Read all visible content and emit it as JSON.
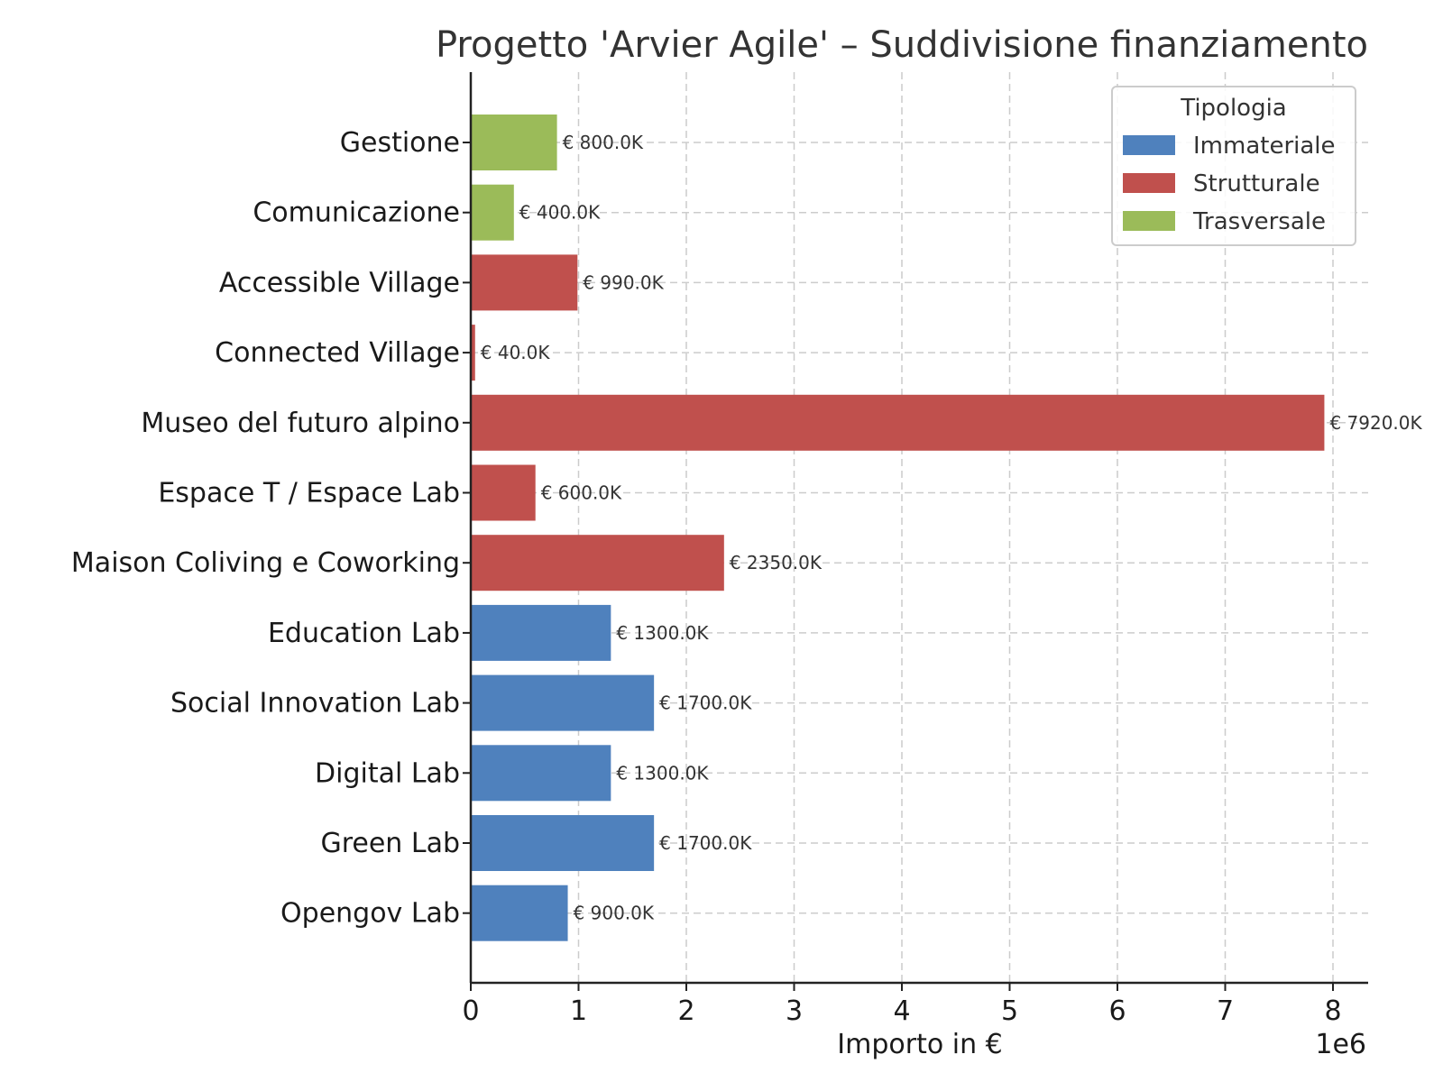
{
  "chart_data": {
    "type": "bar",
    "orientation": "horizontal",
    "title": "Progetto 'Arvier Agile' – Suddivisione finanziamento",
    "xlabel": "Importo in €",
    "xaxis_offset_label": "1e6",
    "ylabel": "",
    "xlim": [
      0,
      8300000
    ],
    "xticks": [
      0,
      1000000,
      2000000,
      3000000,
      4000000,
      5000000,
      6000000,
      7000000,
      8000000
    ],
    "xtick_labels": [
      "0",
      "1",
      "2",
      "3",
      "4",
      "5",
      "6",
      "7",
      "8"
    ],
    "grid": true,
    "legend": {
      "title": "Tipologia",
      "placement": "top-right",
      "entries": [
        {
          "name": "Immateriale",
          "color": "#4f81bd"
        },
        {
          "name": "Strutturale",
          "color": "#c0504d"
        },
        {
          "name": "Trasversale",
          "color": "#9bbb59"
        }
      ]
    },
    "bars": [
      {
        "category": "Gestione",
        "value": 800000,
        "type": "Trasversale",
        "label": "€ 800.0K"
      },
      {
        "category": "Comunicazione",
        "value": 400000,
        "type": "Trasversale",
        "label": "€ 400.0K"
      },
      {
        "category": "Accessible Village",
        "value": 990000,
        "type": "Strutturale",
        "label": "€ 990.0K"
      },
      {
        "category": "Connected Village",
        "value": 40000,
        "type": "Strutturale",
        "label": "€ 40.0K"
      },
      {
        "category": "Museo del futuro alpino",
        "value": 7920000,
        "type": "Strutturale",
        "label": "€ 7920.0K"
      },
      {
        "category": "Espace T / Espace Lab",
        "value": 600000,
        "type": "Strutturale",
        "label": "€ 600.0K"
      },
      {
        "category": "Maison Coliving e Coworking",
        "value": 2350000,
        "type": "Strutturale",
        "label": "€ 2350.0K"
      },
      {
        "category": "Education Lab",
        "value": 1300000,
        "type": "Immateriale",
        "label": "€ 1300.0K"
      },
      {
        "category": "Social Innovation Lab",
        "value": 1700000,
        "type": "Immateriale",
        "label": "€ 1700.0K"
      },
      {
        "category": "Digital Lab",
        "value": 1300000,
        "type": "Immateriale",
        "label": "€ 1300.0K"
      },
      {
        "category": "Green Lab",
        "value": 1700000,
        "type": "Immateriale",
        "label": "€ 1700.0K"
      },
      {
        "category": "Opengov Lab",
        "value": 900000,
        "type": "Immateriale",
        "label": "€ 900.0K"
      }
    ]
  }
}
